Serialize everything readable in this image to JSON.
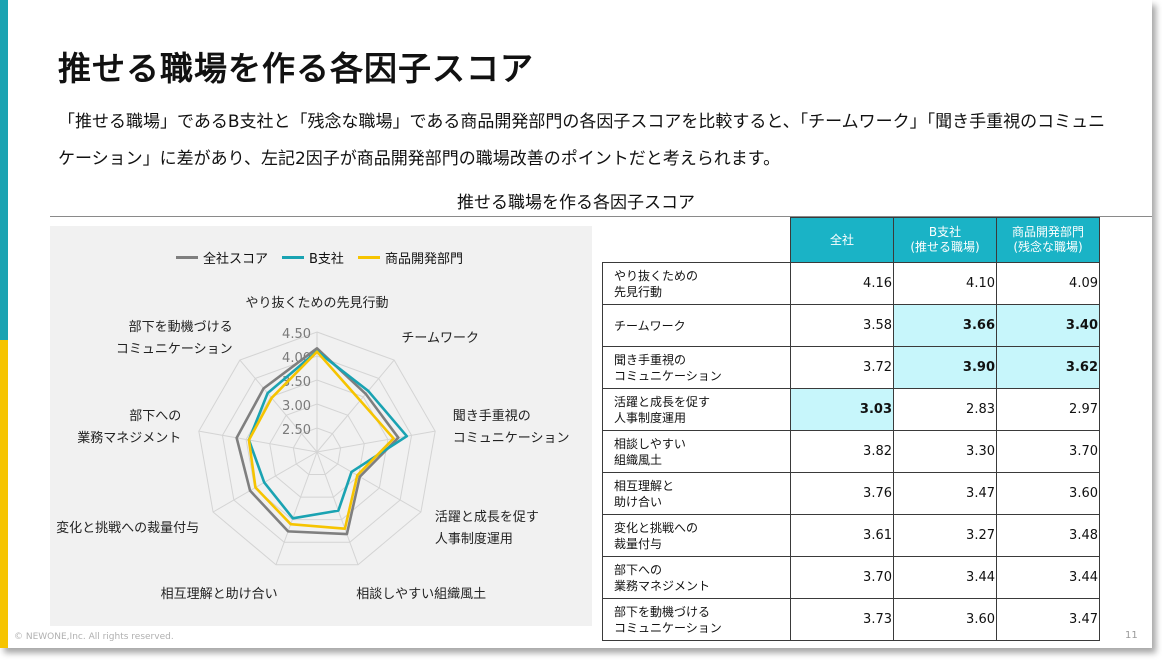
{
  "title": "推せる職場を作る各因子スコア",
  "description": "「推せる職場」であるB支社と「残念な職場」である商品開発部門の各因子スコアを比較すると、「チームワーク」「聞き手重視のコミュニケーション」に差があり、左記2因子が商品開発部門の職場改善のポイントだと考えられます。",
  "chart_title": "推せる職場を作る各因子スコア",
  "footer": "© NEWONE,Inc.  All rights reserved.",
  "page_number": "11",
  "colors": {
    "teal": "#1aa3b2",
    "yellow": "#f6c400",
    "gray": "#7f7f7f",
    "header": "#1ab3c6",
    "highlight": "#c7f6fb"
  },
  "chart_data": {
    "type": "radar",
    "categories": [
      "やり抜くための先見行動",
      "チームワーク",
      "聞き手重視のコミュニケーション",
      "活躍と成長を促す人事制度運用",
      "相談しやすい組織風土",
      "相互理解と助け合い",
      "変化と挑戦への裁量付与",
      "部下への業務マネジメント",
      "部下を動機づけるコミュニケーション"
    ],
    "axis_labels": [
      [
        "やり抜くための先見行動"
      ],
      [
        "チームワーク"
      ],
      [
        "聞き手重視の",
        "コミュニケーション"
      ],
      [
        "活躍と成長を促す",
        "人事制度運用"
      ],
      [
        "相談しやすい組織風土"
      ],
      [
        "相互理解と助け合い"
      ],
      [
        "変化と挑戦への裁量付与"
      ],
      [
        "部下への",
        "業務マネジメント"
      ],
      [
        "部下を動機づける",
        "コミュニケーション"
      ]
    ],
    "rlim": [
      2.0,
      4.5
    ],
    "ticks": [
      "2.50",
      "3.00",
      "3.50",
      "4.00",
      "4.50"
    ],
    "tick_values": [
      2.5,
      3.0,
      3.5,
      4.0,
      4.5
    ],
    "series": [
      {
        "name": "全社スコア",
        "color": "#7f7f7f",
        "values": [
          4.16,
          3.58,
          3.72,
          3.03,
          3.82,
          3.76,
          3.61,
          3.7,
          3.73
        ]
      },
      {
        "name": "B支社",
        "color": "#1aa3b2",
        "values": [
          4.1,
          3.66,
          3.9,
          2.83,
          3.3,
          3.47,
          3.27,
          3.44,
          3.6
        ]
      },
      {
        "name": "商品開発部門",
        "color": "#f6c400",
        "values": [
          4.09,
          3.4,
          3.62,
          2.97,
          3.7,
          3.6,
          3.48,
          3.44,
          3.47
        ]
      }
    ]
  },
  "table": {
    "headers": [
      {
        "line1": "全社",
        "line2": ""
      },
      {
        "line1": "B支社",
        "line2": "(推せる職場)"
      },
      {
        "line1": "商品開発部門",
        "line2": "(残念な職場)"
      }
    ],
    "rows": [
      {
        "label": "やり抜くための\n先見行動",
        "values": [
          "4.16",
          "4.10",
          "4.09"
        ],
        "highlight": [
          false,
          false,
          false
        ]
      },
      {
        "label": "チームワーク",
        "values": [
          "3.58",
          "3.66",
          "3.40"
        ],
        "highlight": [
          false,
          true,
          true
        ]
      },
      {
        "label": "聞き手重視の\nコミュニケーション",
        "values": [
          "3.72",
          "3.90",
          "3.62"
        ],
        "highlight": [
          false,
          true,
          true
        ]
      },
      {
        "label": "活躍と成長を促す\n人事制度運用",
        "values": [
          "3.03",
          "2.83",
          "2.97"
        ],
        "highlight": [
          true,
          false,
          false
        ]
      },
      {
        "label": "相談しやすい\n組織風土",
        "values": [
          "3.82",
          "3.30",
          "3.70"
        ],
        "highlight": [
          false,
          false,
          false
        ]
      },
      {
        "label": "相互理解と\n助け合い",
        "values": [
          "3.76",
          "3.47",
          "3.60"
        ],
        "highlight": [
          false,
          false,
          false
        ]
      },
      {
        "label": "変化と挑戦への\n裁量付与",
        "values": [
          "3.61",
          "3.27",
          "3.48"
        ],
        "highlight": [
          false,
          false,
          false
        ]
      },
      {
        "label": "部下への\n業務マネジメント",
        "values": [
          "3.70",
          "3.44",
          "3.44"
        ],
        "highlight": [
          false,
          false,
          false
        ]
      },
      {
        "label": "部下を動機づける\nコミュニケーション",
        "values": [
          "3.73",
          "3.60",
          "3.47"
        ],
        "highlight": [
          false,
          false,
          false
        ]
      }
    ]
  }
}
